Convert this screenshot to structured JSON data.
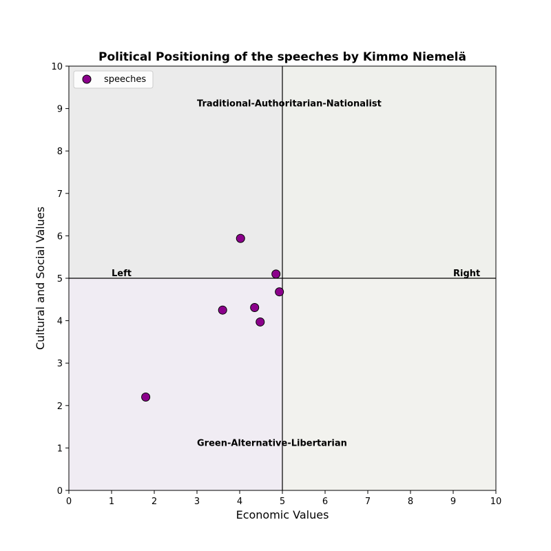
{
  "chart_data": {
    "type": "scatter",
    "title": "Political Positioning of the speeches by Kimmo Niemelä",
    "xlabel": "Economic Values",
    "ylabel": "Cultural and Social Values",
    "xlim": [
      0,
      10
    ],
    "ylim": [
      0,
      10
    ],
    "xticks": [
      "0",
      "1",
      "2",
      "3",
      "4",
      "5",
      "6",
      "7",
      "8",
      "9",
      "10"
    ],
    "yticks": [
      "0",
      "1",
      "2",
      "3",
      "4",
      "5",
      "6",
      "7",
      "8",
      "9",
      "10"
    ],
    "grid": false,
    "legend_position": "top-left",
    "series": [
      {
        "name": "speeches",
        "color": "#8b008b",
        "points": [
          {
            "x": 4.02,
            "y": 5.94
          },
          {
            "x": 4.85,
            "y": 5.1
          },
          {
            "x": 4.93,
            "y": 4.68
          },
          {
            "x": 3.6,
            "y": 4.25
          },
          {
            "x": 4.35,
            "y": 4.31
          },
          {
            "x": 4.48,
            "y": 3.97
          },
          {
            "x": 1.8,
            "y": 2.2
          }
        ]
      }
    ],
    "quadrants": [
      {
        "name": "top-left",
        "color": "#ebebeb"
      },
      {
        "name": "top-right",
        "color": "#eff0ec"
      },
      {
        "name": "bottom-left",
        "color": "#f0ecf3"
      },
      {
        "name": "bottom-right",
        "color": "#f2f2ee"
      }
    ],
    "reference_lines": {
      "x": 5,
      "y": 5
    },
    "annotations": [
      {
        "text": "Traditional-Authoritarian-Nationalist",
        "x": 3.0,
        "y": 9.05
      },
      {
        "text": "Green-Alternative-Libertarian",
        "x": 3.0,
        "y": 1.05
      },
      {
        "text": "Left",
        "x": 1.0,
        "y": 5.05
      },
      {
        "text": "Right",
        "x": 9.0,
        "y": 5.05
      }
    ]
  }
}
